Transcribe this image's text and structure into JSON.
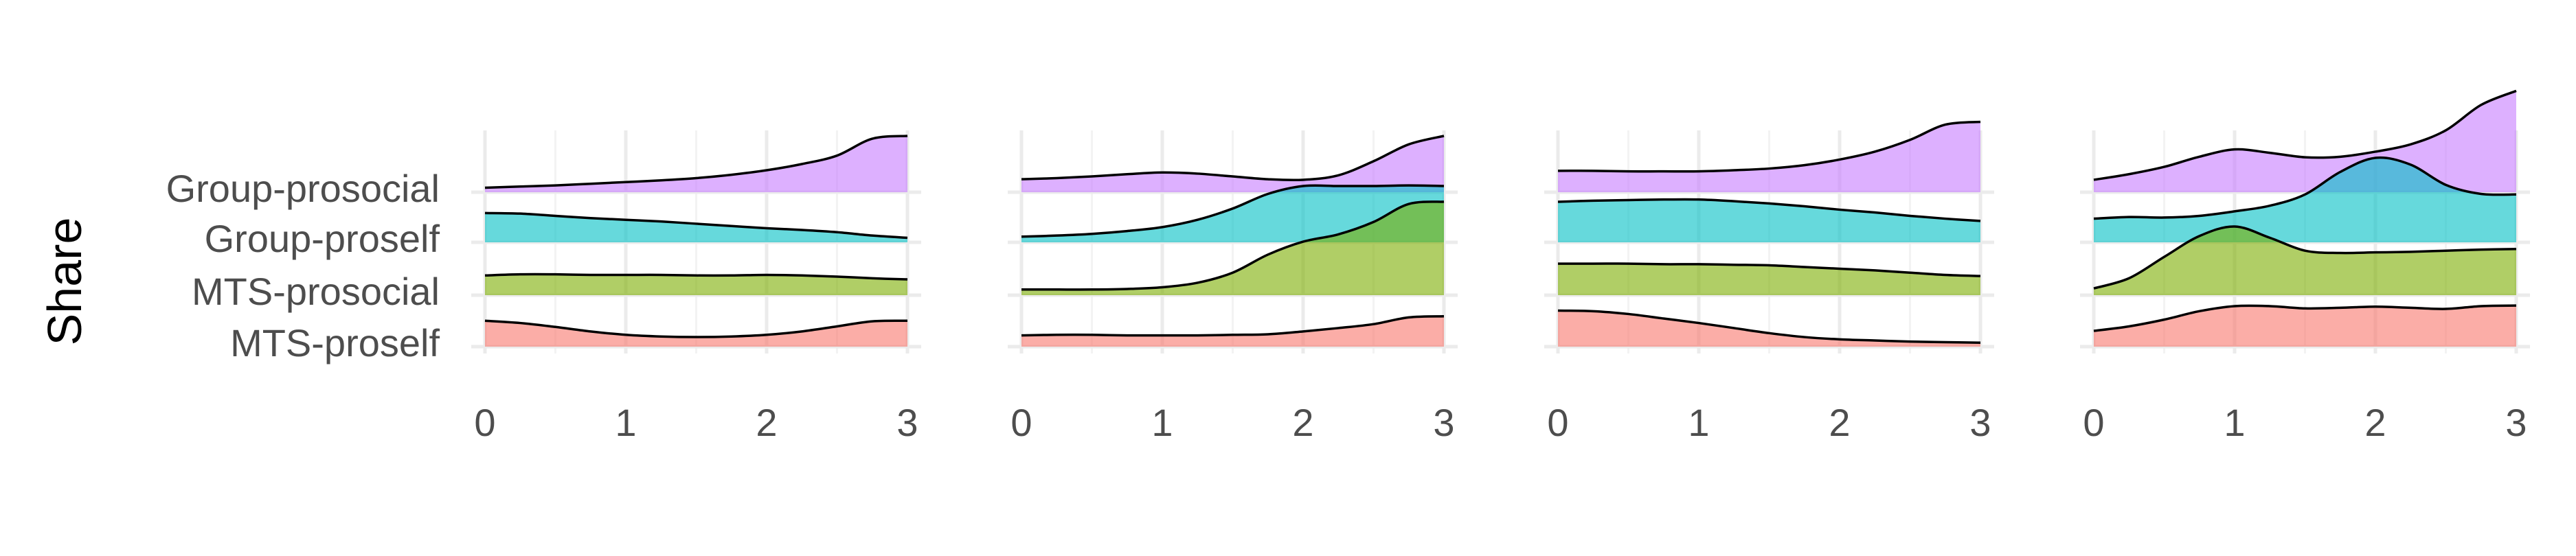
{
  "chart_data": {
    "type": "ridgeline",
    "ylabel": "Share",
    "xlabel": "",
    "categories": [
      "MTS-proself",
      "MTS-prosocial",
      "Group-proself",
      "Group-prosocial"
    ],
    "colors": {
      "MTS-proself": "#F8766D",
      "MTS-prosocial": "#7CAE00",
      "Group-proself": "#00BFC4",
      "Group-prosocial": "#C77CFF"
    },
    "xlim": [
      0,
      3
    ],
    "x_ticks": [
      "0",
      "1",
      "2",
      "3"
    ],
    "x": [
      0,
      0.25,
      0.5,
      0.75,
      1,
      1.25,
      1.5,
      1.75,
      2,
      2.25,
      2.5,
      2.75,
      3
    ],
    "grid": true,
    "legend": "none",
    "panels": [
      {
        "series": [
          {
            "name": "MTS-proself",
            "values": [
              0.46,
              0.42,
              0.35,
              0.27,
              0.21,
              0.18,
              0.17,
              0.18,
              0.21,
              0.27,
              0.36,
              0.45,
              0.46
            ]
          },
          {
            "name": "MTS-prosocial",
            "values": [
              0.35,
              0.37,
              0.37,
              0.36,
              0.36,
              0.36,
              0.35,
              0.35,
              0.36,
              0.35,
              0.33,
              0.3,
              0.28
            ]
          },
          {
            "name": "Group-proself",
            "values": [
              0.52,
              0.51,
              0.47,
              0.43,
              0.4,
              0.37,
              0.33,
              0.29,
              0.25,
              0.22,
              0.18,
              0.12,
              0.08
            ]
          },
          {
            "name": "Group-prosocial",
            "values": [
              0.08,
              0.1,
              0.12,
              0.15,
              0.18,
              0.21,
              0.25,
              0.31,
              0.39,
              0.5,
              0.65,
              0.95,
              1.0
            ]
          }
        ]
      },
      {
        "series": [
          {
            "name": "MTS-proself",
            "values": [
              0.2,
              0.21,
              0.21,
              0.2,
              0.2,
              0.2,
              0.21,
              0.22,
              0.27,
              0.33,
              0.4,
              0.52,
              0.54
            ]
          },
          {
            "name": "MTS-prosocial",
            "values": [
              0.1,
              0.1,
              0.1,
              0.11,
              0.14,
              0.22,
              0.4,
              0.72,
              0.95,
              1.08,
              1.3,
              1.62,
              1.66
            ]
          },
          {
            "name": "Group-proself",
            "values": [
              0.1,
              0.12,
              0.15,
              0.2,
              0.27,
              0.4,
              0.6,
              0.86,
              1.0,
              1.0,
              1.0,
              1.01,
              1.0
            ]
          },
          {
            "name": "Group-prosocial",
            "values": [
              0.23,
              0.25,
              0.28,
              0.32,
              0.35,
              0.33,
              0.28,
              0.23,
              0.22,
              0.3,
              0.55,
              0.85,
              1.0
            ]
          }
        ]
      },
      {
        "series": [
          {
            "name": "MTS-proself",
            "values": [
              0.64,
              0.63,
              0.58,
              0.5,
              0.42,
              0.33,
              0.24,
              0.17,
              0.13,
              0.11,
              0.09,
              0.08,
              0.07
            ]
          },
          {
            "name": "MTS-prosocial",
            "values": [
              0.56,
              0.56,
              0.56,
              0.55,
              0.55,
              0.54,
              0.53,
              0.5,
              0.47,
              0.44,
              0.4,
              0.36,
              0.34
            ]
          },
          {
            "name": "Group-proself",
            "values": [
              0.72,
              0.74,
              0.75,
              0.76,
              0.76,
              0.73,
              0.69,
              0.64,
              0.58,
              0.53,
              0.47,
              0.42,
              0.38
            ]
          },
          {
            "name": "Group-prosocial",
            "values": [
              0.38,
              0.38,
              0.37,
              0.37,
              0.37,
              0.39,
              0.42,
              0.48,
              0.58,
              0.72,
              0.93,
              1.2,
              1.25
            ]
          }
        ]
      },
      {
        "series": [
          {
            "name": "MTS-proself",
            "values": [
              0.28,
              0.36,
              0.48,
              0.63,
              0.72,
              0.72,
              0.68,
              0.69,
              0.71,
              0.69,
              0.67,
              0.72,
              0.73
            ]
          },
          {
            "name": "MTS-prosocial",
            "values": [
              0.12,
              0.3,
              0.68,
              1.05,
              1.22,
              1.02,
              0.79,
              0.75,
              0.76,
              0.77,
              0.79,
              0.81,
              0.82
            ]
          },
          {
            "name": "Group-proself",
            "values": [
              0.42,
              0.45,
              0.44,
              0.47,
              0.55,
              0.65,
              0.85,
              1.25,
              1.5,
              1.38,
              1.02,
              0.86,
              0.85
            ]
          },
          {
            "name": "Group-prosocial",
            "values": [
              0.22,
              0.32,
              0.45,
              0.63,
              0.76,
              0.7,
              0.62,
              0.63,
              0.72,
              0.85,
              1.1,
              1.55,
              1.8
            ]
          }
        ]
      }
    ]
  }
}
